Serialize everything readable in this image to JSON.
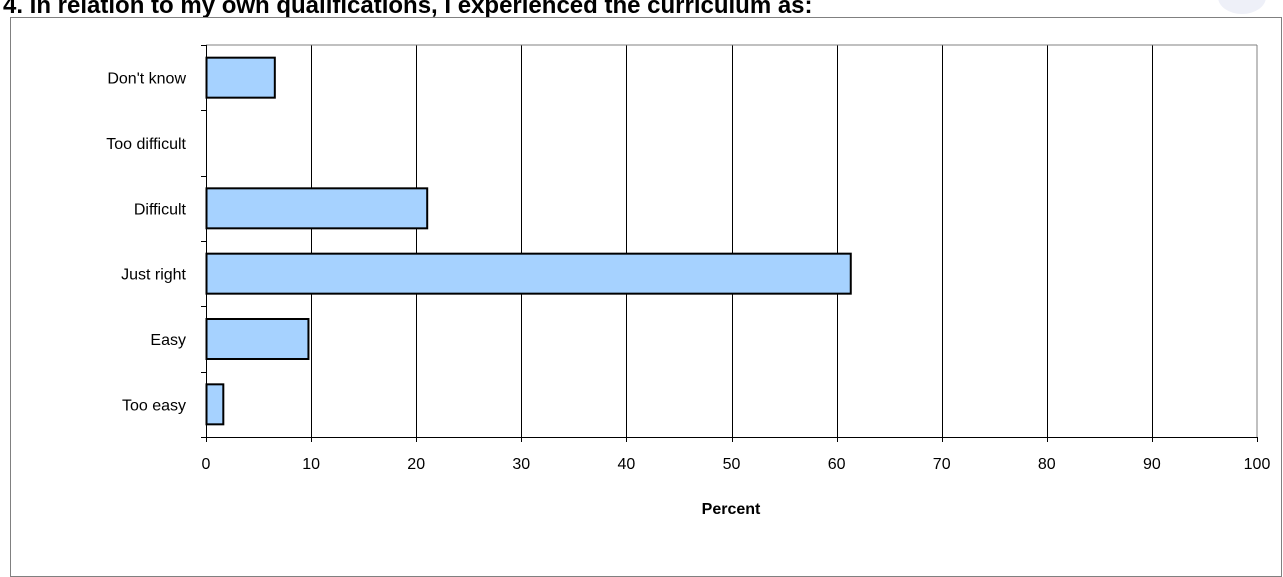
{
  "page": {
    "title": "4. In relation to my own qualifications, I experienced the curriculum as:"
  },
  "chart_data": {
    "type": "bar",
    "orientation": "horizontal",
    "title": "4. In relation to my own qualifications, I experienced the curriculum as:",
    "xlabel": "Percent",
    "ylabel": "",
    "categories": [
      "Don't know",
      "Too difficult",
      "Difficult",
      "Just right",
      "Easy",
      "Too easy"
    ],
    "values": [
      6.5,
      0,
      21,
      61.3,
      9.7,
      1.6
    ],
    "xlim": [
      0,
      100
    ],
    "xticks": [
      0,
      10,
      20,
      30,
      40,
      50,
      60,
      70,
      80,
      90,
      100
    ],
    "grid": true,
    "legend": "none",
    "colors": {
      "bar_fill": "#a6d2ff",
      "bar_stroke": "#000000",
      "grid": "#000000",
      "axis": "#808080"
    }
  }
}
